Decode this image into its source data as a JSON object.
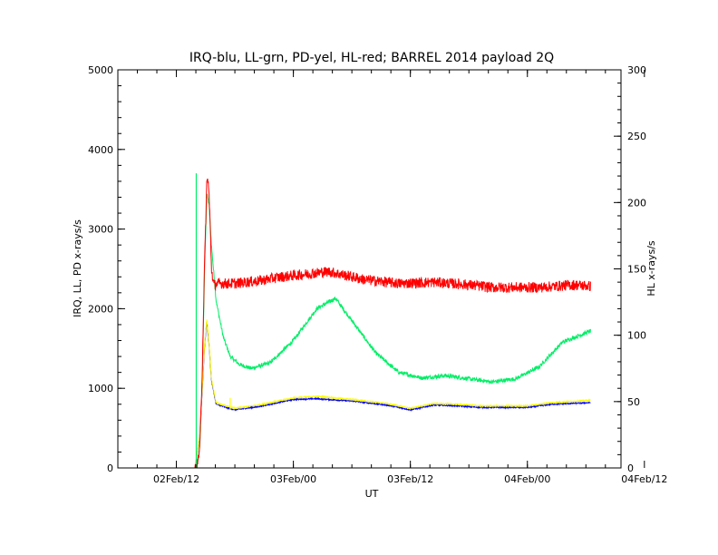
{
  "chart_data": {
    "type": "line",
    "title": "IRQ-blu, LL-grn, PD-yel, HL-red; BARREL 2014 payload 2Q",
    "xlabel": "UT",
    "ylabel": "IRQ, LL, PD x-rays/s",
    "y2label": "HL x-rays/s",
    "grid": false,
    "legend": "none",
    "xlim": [
      -0.25,
      1.9
    ],
    "ylim": [
      0,
      5000
    ],
    "y2lim": [
      0,
      300
    ],
    "x_ticks": [
      {
        "value": 0.0,
        "label": "02Feb/12"
      },
      {
        "value": 0.5,
        "label": "03Feb/00"
      },
      {
        "value": 1.0,
        "label": "03Feb/12"
      },
      {
        "value": 1.5,
        "label": "04Feb/00"
      },
      {
        "value": 2.0,
        "label": "04Feb/12"
      }
    ],
    "y_ticks": [
      0,
      1000,
      2000,
      3000,
      4000,
      5000
    ],
    "y2_ticks": [
      0,
      50,
      100,
      150,
      200,
      250,
      300
    ],
    "series": [
      {
        "axis": "right",
        "color": "#ff0000",
        "noise": 4,
        "x": [
          0.02,
          0.08,
          0.09,
          0.1,
          0.11,
          0.12,
          0.13,
          0.135,
          0.14,
          0.145,
          0.15,
          0.16,
          0.18,
          0.25,
          0.35,
          0.45,
          0.55,
          0.65,
          0.8,
          0.95,
          1.1,
          1.25,
          1.35,
          1.45,
          1.55,
          1.7,
          1.77
        ],
        "y": [
          0,
          0,
          3,
          15,
          70,
          150,
          215,
          218,
          205,
          180,
          150,
          138,
          139,
          139,
          141,
          144,
          146,
          148,
          142,
          139,
          140,
          138,
          136,
          136,
          136,
          138,
          137
        ]
      },
      {
        "axis": "left",
        "color": "#00ee66",
        "noise": 25,
        "x": [
          0.085,
          0.09,
          0.1,
          0.11,
          0.12,
          0.13,
          0.14,
          0.15,
          0.17,
          0.2,
          0.23,
          0.27,
          0.32,
          0.4,
          0.5,
          0.6,
          0.68,
          0.75,
          0.85,
          0.95,
          1.05,
          1.15,
          1.25,
          1.35,
          1.45,
          1.55,
          1.65,
          1.77
        ],
        "y": [
          0,
          40,
          250,
          1000,
          2400,
          3450,
          3300,
          2800,
          2100,
          1650,
          1400,
          1300,
          1250,
          1320,
          1600,
          2000,
          2130,
          1850,
          1450,
          1200,
          1130,
          1160,
          1120,
          1080,
          1120,
          1270,
          1580,
          1720
        ]
      },
      {
        "axis": "left",
        "color": "#0000ff",
        "noise": 8,
        "x": [
          0.08,
          0.1,
          0.12,
          0.13,
          0.14,
          0.15,
          0.17,
          0.2,
          0.25,
          0.35,
          0.5,
          0.6,
          0.75,
          0.9,
          1.0,
          1.05,
          1.1,
          1.2,
          1.3,
          1.5,
          1.6,
          1.77
        ],
        "y": [
          0,
          400,
          1500,
          1850,
          1550,
          1100,
          800,
          770,
          730,
          770,
          860,
          870,
          840,
          790,
          730,
          760,
          790,
          780,
          760,
          760,
          800,
          820
        ]
      },
      {
        "axis": "left",
        "color": "#ffff00",
        "noise": 8,
        "x": [
          0.08,
          0.1,
          0.12,
          0.13,
          0.14,
          0.15,
          0.17,
          0.2,
          0.25,
          0.35,
          0.5,
          0.6,
          0.75,
          0.9,
          1.0,
          1.05,
          1.1,
          1.2,
          1.3,
          1.5,
          1.6,
          1.77
        ],
        "y": [
          0,
          420,
          1520,
          1870,
          1570,
          1120,
          820,
          790,
          750,
          790,
          880,
          900,
          860,
          810,
          750,
          780,
          810,
          800,
          780,
          780,
          820,
          850
        ]
      }
    ],
    "annotations": [
      {
        "type": "vline",
        "x": 0.085,
        "y0": 0,
        "y1": 3700,
        "color": "#00ee66"
      },
      {
        "type": "vline",
        "x": 0.23,
        "y0": 740,
        "y1": 880,
        "color": "#ffff00"
      }
    ]
  }
}
